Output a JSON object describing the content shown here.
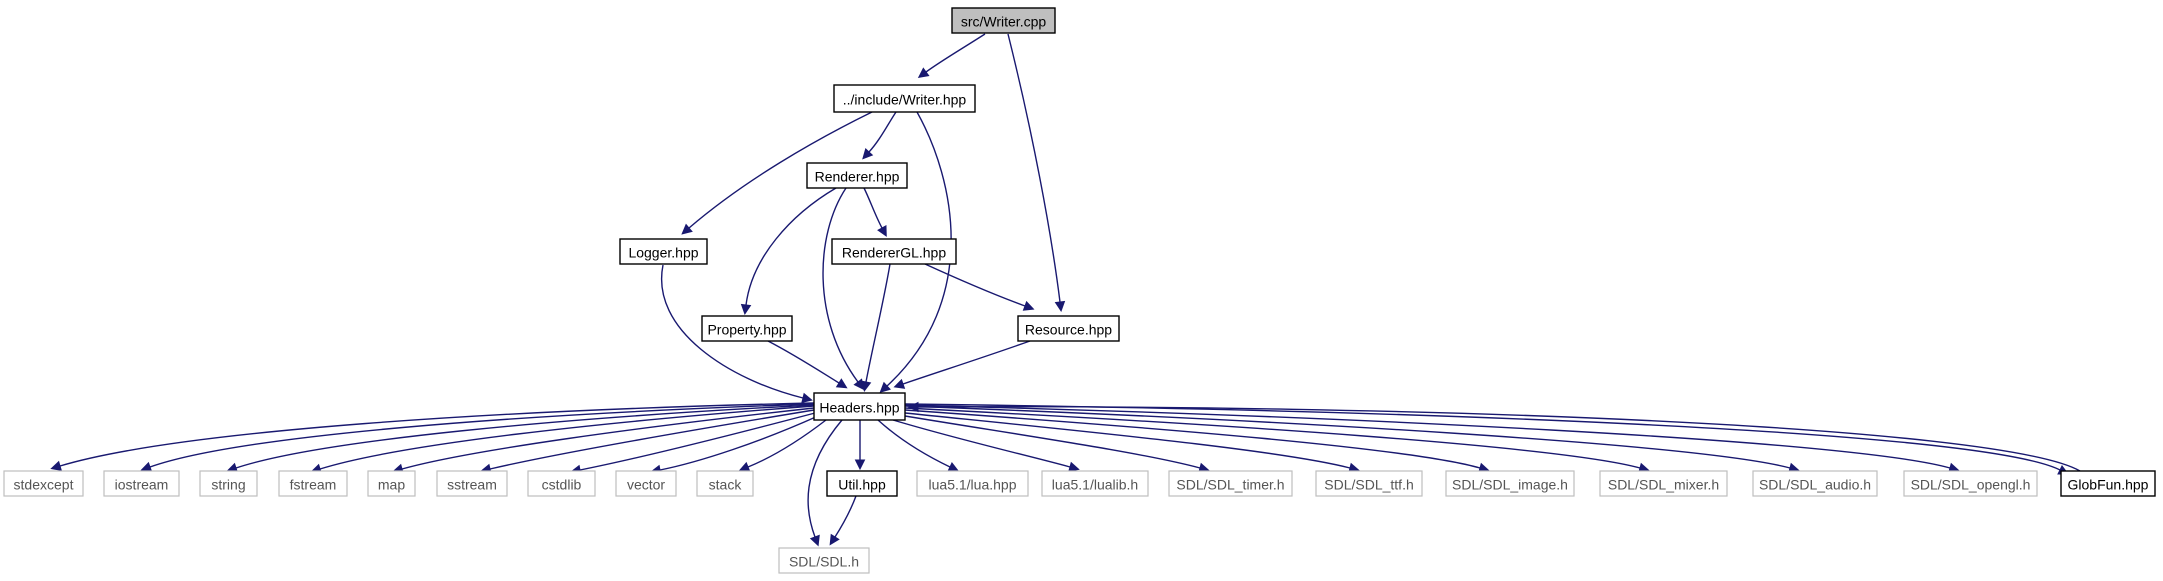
{
  "diagram": {
    "type": "include-dependency-graph",
    "colors": {
      "edge": "#191970",
      "root_fill": "#bfbfbf",
      "node_border": "#000000",
      "external_border": "#bfbfbf"
    },
    "nodes": [
      {
        "id": "writer_cpp",
        "label": "src/Writer.cpp",
        "kind": "root"
      },
      {
        "id": "writer_hpp",
        "label": "../include/Writer.hpp",
        "kind": "internal"
      },
      {
        "id": "renderer_hpp",
        "label": "Renderer.hpp",
        "kind": "internal"
      },
      {
        "id": "logger_hpp",
        "label": "Logger.hpp",
        "kind": "internal"
      },
      {
        "id": "renderergl_hpp",
        "label": "RendererGL.hpp",
        "kind": "internal"
      },
      {
        "id": "property_hpp",
        "label": "Property.hpp",
        "kind": "internal"
      },
      {
        "id": "resource_hpp",
        "label": "Resource.hpp",
        "kind": "internal"
      },
      {
        "id": "headers_hpp",
        "label": "Headers.hpp",
        "kind": "internal"
      },
      {
        "id": "stdexcept",
        "label": "stdexcept",
        "kind": "external"
      },
      {
        "id": "iostream",
        "label": "iostream",
        "kind": "external"
      },
      {
        "id": "string",
        "label": "string",
        "kind": "external"
      },
      {
        "id": "fstream",
        "label": "fstream",
        "kind": "external"
      },
      {
        "id": "map",
        "label": "map",
        "kind": "external"
      },
      {
        "id": "sstream",
        "label": "sstream",
        "kind": "external"
      },
      {
        "id": "cstdlib",
        "label": "cstdlib",
        "kind": "external"
      },
      {
        "id": "vector",
        "label": "vector",
        "kind": "external"
      },
      {
        "id": "stack",
        "label": "stack",
        "kind": "external"
      },
      {
        "id": "util_hpp",
        "label": "Util.hpp",
        "kind": "internal"
      },
      {
        "id": "lua_hpp",
        "label": "lua5.1/lua.hpp",
        "kind": "external"
      },
      {
        "id": "lualib_h",
        "label": "lua5.1/lualib.h",
        "kind": "external"
      },
      {
        "id": "sdl_timer",
        "label": "SDL/SDL_timer.h",
        "kind": "external"
      },
      {
        "id": "sdl_ttf",
        "label": "SDL/SDL_ttf.h",
        "kind": "external"
      },
      {
        "id": "sdl_image",
        "label": "SDL/SDL_image.h",
        "kind": "external"
      },
      {
        "id": "sdl_mixer",
        "label": "SDL/SDL_mixer.h",
        "kind": "external"
      },
      {
        "id": "sdl_audio",
        "label": "SDL/SDL_audio.h",
        "kind": "external"
      },
      {
        "id": "sdl_opengl",
        "label": "SDL/SDL_opengl.h",
        "kind": "external"
      },
      {
        "id": "globfun_hpp",
        "label": "GlobFun.hpp",
        "kind": "internal"
      },
      {
        "id": "sdl_h",
        "label": "SDL/SDL.h",
        "kind": "external"
      }
    ],
    "edges": [
      {
        "from": "writer_cpp",
        "to": "writer_hpp"
      },
      {
        "from": "writer_cpp",
        "to": "resource_hpp"
      },
      {
        "from": "writer_hpp",
        "to": "logger_hpp"
      },
      {
        "from": "writer_hpp",
        "to": "renderer_hpp"
      },
      {
        "from": "writer_hpp",
        "to": "headers_hpp"
      },
      {
        "from": "renderer_hpp",
        "to": "property_hpp"
      },
      {
        "from": "renderer_hpp",
        "to": "headers_hpp"
      },
      {
        "from": "renderer_hpp",
        "to": "renderergl_hpp"
      },
      {
        "from": "renderergl_hpp",
        "to": "headers_hpp"
      },
      {
        "from": "renderergl_hpp",
        "to": "resource_hpp"
      },
      {
        "from": "logger_hpp",
        "to": "headers_hpp"
      },
      {
        "from": "property_hpp",
        "to": "headers_hpp"
      },
      {
        "from": "resource_hpp",
        "to": "headers_hpp"
      },
      {
        "from": "headers_hpp",
        "to": "stdexcept"
      },
      {
        "from": "headers_hpp",
        "to": "iostream"
      },
      {
        "from": "headers_hpp",
        "to": "string"
      },
      {
        "from": "headers_hpp",
        "to": "fstream"
      },
      {
        "from": "headers_hpp",
        "to": "map"
      },
      {
        "from": "headers_hpp",
        "to": "sstream"
      },
      {
        "from": "headers_hpp",
        "to": "cstdlib"
      },
      {
        "from": "headers_hpp",
        "to": "vector"
      },
      {
        "from": "headers_hpp",
        "to": "stack"
      },
      {
        "from": "headers_hpp",
        "to": "sdl_h"
      },
      {
        "from": "headers_hpp",
        "to": "util_hpp"
      },
      {
        "from": "headers_hpp",
        "to": "lua_hpp"
      },
      {
        "from": "headers_hpp",
        "to": "lualib_h"
      },
      {
        "from": "headers_hpp",
        "to": "sdl_timer"
      },
      {
        "from": "headers_hpp",
        "to": "sdl_ttf"
      },
      {
        "from": "headers_hpp",
        "to": "sdl_image"
      },
      {
        "from": "headers_hpp",
        "to": "sdl_mixer"
      },
      {
        "from": "headers_hpp",
        "to": "sdl_audio"
      },
      {
        "from": "headers_hpp",
        "to": "sdl_opengl"
      },
      {
        "from": "headers_hpp",
        "to": "globfun_hpp"
      },
      {
        "from": "globfun_hpp",
        "to": "headers_hpp"
      },
      {
        "from": "util_hpp",
        "to": "sdl_h"
      }
    ]
  }
}
